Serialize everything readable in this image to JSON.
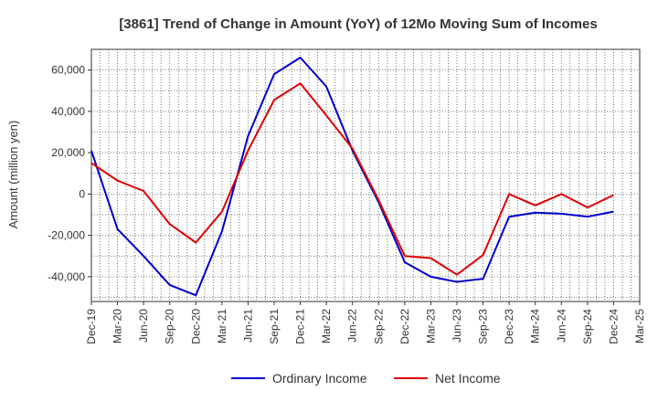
{
  "chart_data": {
    "type": "line",
    "title": "[3861]  Trend of Change in Amount (YoY) of 12Mo Moving Sum of Incomes",
    "ylabel": "Amount (million yen)",
    "xlabel": "",
    "ylim": [
      -52000,
      70000
    ],
    "yticks": [
      60000,
      40000,
      20000,
      0,
      -20000,
      -40000
    ],
    "ytick_labels": [
      "60,000",
      "40,000",
      "20,000",
      "0",
      "-20,000",
      "-40,000"
    ],
    "categories": [
      "Dec-19",
      "Mar-20",
      "Jun-20",
      "Sep-20",
      "Dec-20",
      "Mar-21",
      "Jun-21",
      "Sep-21",
      "Dec-21",
      "Mar-22",
      "Jun-22",
      "Sep-22",
      "Dec-22",
      "Mar-23",
      "Jun-23",
      "Sep-23",
      "Dec-23",
      "Mar-24",
      "Jun-24",
      "Sep-24",
      "Dec-24",
      "Mar-25"
    ],
    "grid": true,
    "legend_position": "bottom",
    "series": [
      {
        "name": "Ordinary Income",
        "color": "#0000cc",
        "values": [
          21000,
          -17000,
          -30000,
          -44000,
          -49000,
          -18000,
          28000,
          58000,
          66000,
          52000,
          21000,
          -4000,
          -33000,
          -40000,
          -42500,
          -41000,
          -11000,
          -9000,
          -9500,
          -11000,
          -8500,
          null
        ]
      },
      {
        "name": "Net Income",
        "color": "#dd0000",
        "values": [
          15000,
          6500,
          1500,
          -14500,
          -23500,
          -8500,
          21000,
          45500,
          53500,
          38000,
          22000,
          -3000,
          -30000,
          -31000,
          -39000,
          -29500,
          0,
          -5500,
          0,
          -6500,
          -500,
          null
        ]
      }
    ]
  }
}
